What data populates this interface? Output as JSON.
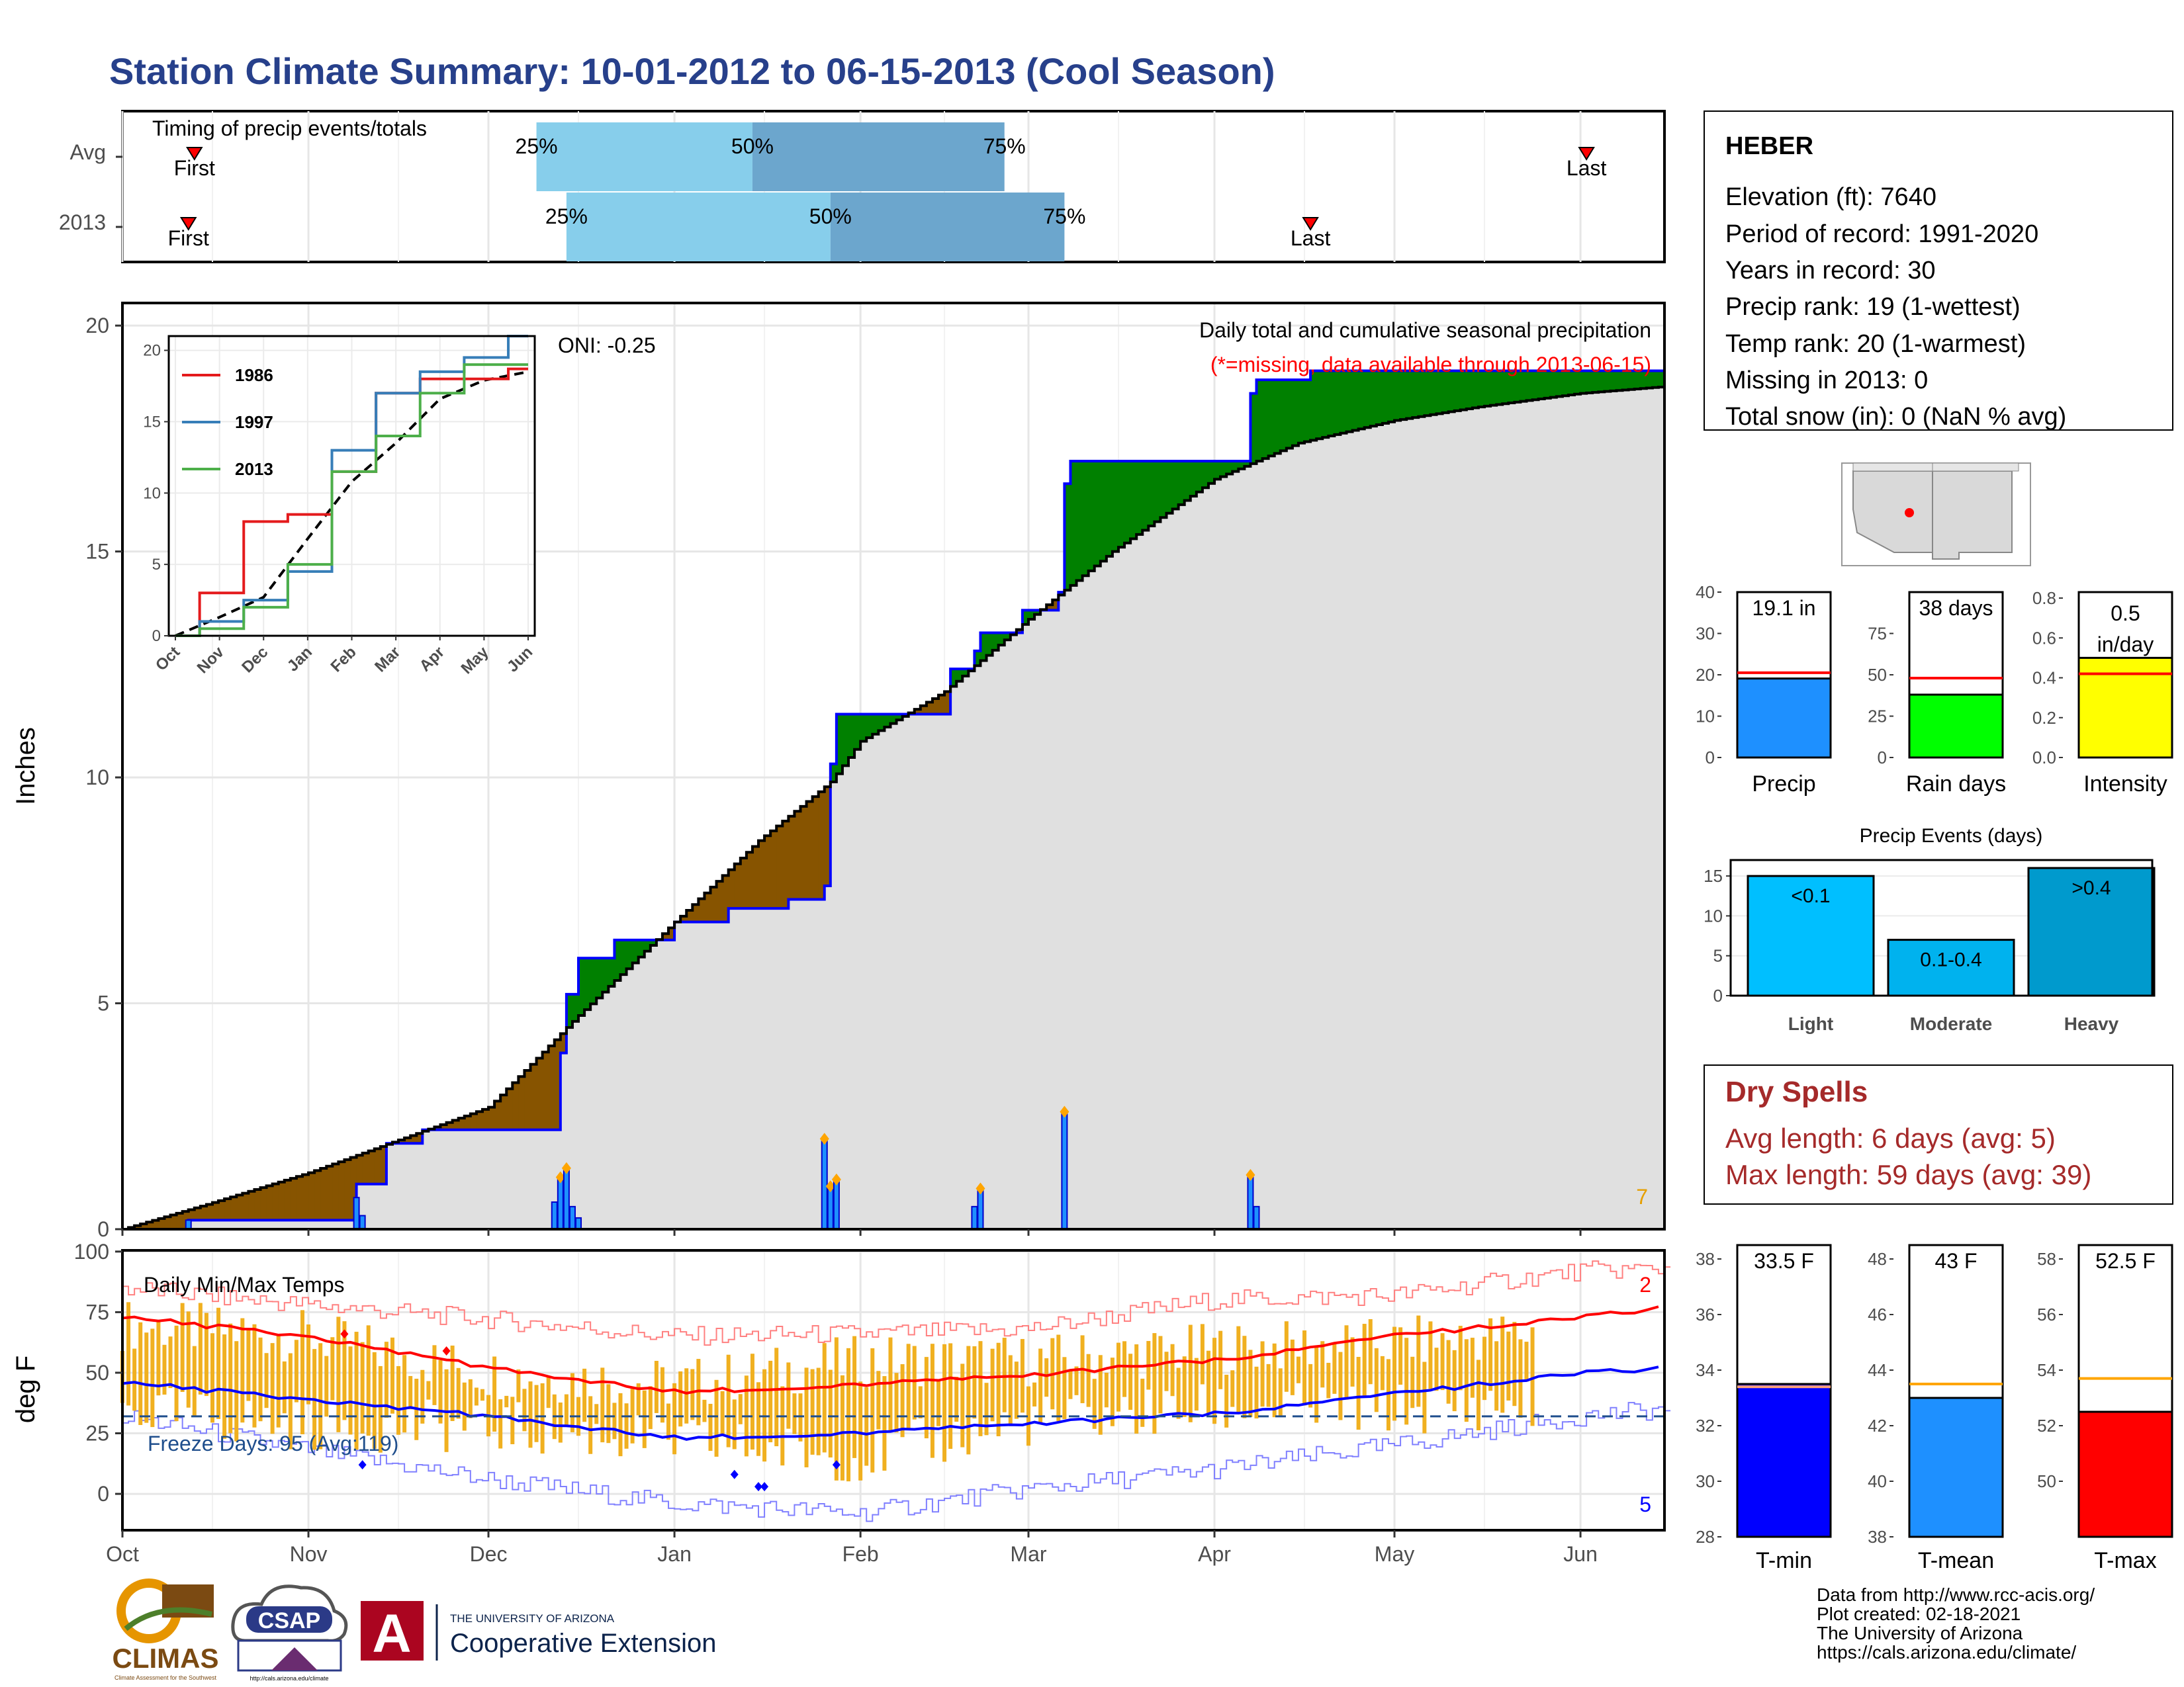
{
  "title": "Station Climate Summary: 10-01-2012 to 06-15-2013 (Cool Season)",
  "timing": {
    "label": "Timing of precip events/totals",
    "rows": [
      {
        "name": "Avg",
        "first_label": "First",
        "first": "2012-10-13",
        "last_label": "Last",
        "last": "2013-06-02",
        "q25": "2012-12-09",
        "q50": "2013-01-14",
        "q75": "2013-02-25",
        "q25_label": "25%",
        "q50_label": "50%",
        "q75_label": "75%"
      },
      {
        "name": "2013",
        "first_label": "First",
        "first": "2012-10-12",
        "last_label": "Last",
        "last": "2013-04-17",
        "q25": "2012-12-14",
        "q50": "2013-01-27",
        "q75": "2013-03-07",
        "q25_label": "25%",
        "q50_label": "50%",
        "q75_label": "75%"
      }
    ]
  },
  "precip_panel": {
    "ylabel": "Inches",
    "yticks": [
      0,
      5,
      10,
      15,
      20
    ],
    "title": "Daily total and cumulative seasonal precipitation",
    "subtitle": "(*=missing, data available through 2013-06-15)",
    "oni": "ONI: -0.25",
    "corner_count": "7"
  },
  "inset": {
    "series": [
      {
        "name": "1986",
        "color": "#e41a1c"
      },
      {
        "name": "1997",
        "color": "#377eb8"
      },
      {
        "name": "2013",
        "color": "#4daf4a"
      }
    ],
    "yticks": [
      0,
      5,
      10,
      15,
      20
    ],
    "xticks": [
      "Oct",
      "Nov",
      "Dec",
      "Jan",
      "Feb",
      "Mar",
      "Apr",
      "May",
      "Jun"
    ]
  },
  "temp_panel": {
    "ylabel": "deg F",
    "yticks": [
      0,
      25,
      50,
      75,
      100
    ],
    "title": "Daily Min/Max Temps",
    "freeze": "Freeze Days: 95 (Avg:119)",
    "count_high": "2",
    "count_low": "5"
  },
  "months": [
    "Oct",
    "Nov",
    "Dec",
    "Jan",
    "Feb",
    "Mar",
    "Apr",
    "May",
    "Jun"
  ],
  "station": {
    "name": "HEBER",
    "lines": [
      "Elevation (ft): 7640",
      "Period of record: 1991-2020",
      "Years in record: 30",
      "Precip rank: 19 (1-wettest)",
      "Temp rank: 20 (1-warmest)",
      "Missing in 2013: 0",
      "Total snow (in): 0 (NaN % avg)"
    ]
  },
  "mini_bars": [
    {
      "label": "Precip",
      "value_label": "19.1 in",
      "value": 19.1,
      "avg": 20.5,
      "ymax": 40,
      "ticks": [
        0,
        10,
        20,
        30,
        40
      ],
      "color": "#1e90ff",
      "avg_color": "#ff0000"
    },
    {
      "label": "Rain days",
      "value_label": "38 days",
      "value": 38,
      "avg": 48,
      "ymax": 100,
      "ticks": [
        0,
        25,
        50,
        75
      ],
      "color": "#00ff00",
      "avg_color": "#ff0000"
    },
    {
      "label": "Intensity",
      "value_label": "0.5 in/day",
      "value": 0.5,
      "avg": 0.42,
      "ymax": 0.83,
      "ticks": [
        0.0,
        0.2,
        0.4,
        0.6,
        0.8
      ],
      "color": "#ffff00",
      "avg_color": "#ff0000"
    }
  ],
  "events": {
    "title": "Precip Events (days)",
    "ticks": [
      0,
      5,
      10,
      15
    ],
    "bars": [
      {
        "label": "Light",
        "value_label": "<0.1",
        "value": 15,
        "color": "#00bfff"
      },
      {
        "label": "Moderate",
        "value_label": "0.1-0.4",
        "value": 7,
        "color": "#00b2ee"
      },
      {
        "label": "Heavy",
        "value_label": ">0.4",
        "value": 16,
        "color": "#009acd"
      }
    ]
  },
  "dry_spells": {
    "title": "Dry Spells",
    "avg": "Avg length: 6 days (avg: 5)",
    "max": "Max length: 59 days (avg: 39)",
    "color": "#a52a2a"
  },
  "temp_bars": [
    {
      "label": "T-min",
      "value_label": "33.5 F",
      "value": 33.5,
      "avg": 33.4,
      "ymin": 28,
      "ymax": 38.5,
      "ticks": [
        28,
        30,
        32,
        34,
        36,
        38
      ],
      "color": "#0000ff"
    },
    {
      "label": "T-mean",
      "value_label": "43 F",
      "value": 43,
      "avg": 43.5,
      "ymin": 38,
      "ymax": 48.5,
      "ticks": [
        38,
        40,
        42,
        44,
        46,
        48
      ],
      "color": "#1e90ff"
    },
    {
      "label": "T-max",
      "value_label": "52.5 F",
      "value": 52.5,
      "avg": 53.7,
      "ymin": 48,
      "ymax": 58.5,
      "ticks": [
        50,
        52,
        54,
        56,
        58
      ],
      "color": "#ff0000"
    }
  ],
  "credits": [
    "Data from http://www.rcc-acis.org/",
    "Plot created: 02-18-2021",
    "The University of Arizona",
    "https://cals.arizona.edu/climate/"
  ],
  "logos": {
    "climas": "CLIMAS",
    "climas_sub": "Climate Assessment for the Southwest",
    "csap": "CSAP",
    "csap_sub": "http://cals.arizona.edu/climate",
    "ua_top": "THE UNIVERSITY OF ARIZONA",
    "ua_bottom": "Cooperative Extension"
  },
  "chart_data": [
    {
      "type": "bar",
      "title": "Timing of precip events/totals",
      "categories": [
        "Avg",
        "2013"
      ],
      "series": [
        {
          "name": "25%",
          "values": [
            "2012-12-09",
            "2012-12-14"
          ]
        },
        {
          "name": "50%",
          "values": [
            "2013-01-14",
            "2013-01-27"
          ]
        },
        {
          "name": "75%",
          "values": [
            "2013-02-25",
            "2013-03-07"
          ]
        }
      ]
    },
    {
      "type": "area",
      "title": "Daily total and cumulative seasonal precipitation",
      "ylabel": "Inches",
      "ylim": [
        0,
        20.5
      ],
      "xlim": [
        "2012-10-01",
        "2013-06-15"
      ],
      "series": [
        {
          "values": [
            [
              "2012-10-01",
              0
            ],
            [
              "2012-10-12",
              0.2
            ],
            [
              "2012-11-08",
              0.2
            ],
            [
              "2012-11-09",
              1.0
            ],
            [
              "2012-11-14",
              1.9
            ],
            [
              "2012-11-20",
              2.2
            ],
            [
              "2012-12-12",
              2.2
            ],
            [
              "2012-12-13",
              3.9
            ],
            [
              "2012-12-14",
              5.2
            ],
            [
              "2012-12-16",
              6.0
            ],
            [
              "2012-12-22",
              6.4
            ],
            [
              "2012-12-30",
              6.4
            ],
            [
              "2013-01-01",
              6.8
            ],
            [
              "2013-01-10",
              7.1
            ],
            [
              "2013-01-20",
              7.3
            ],
            [
              "2013-01-26",
              7.6
            ],
            [
              "2013-01-27",
              10.3
            ],
            [
              "2013-01-28",
              11.4
            ],
            [
              "2013-02-15",
              11.4
            ],
            [
              "2013-02-16",
              12.4
            ],
            [
              "2013-02-20",
              12.8
            ],
            [
              "2013-02-21",
              13.2
            ],
            [
              "2013-02-28",
              13.7
            ],
            [
              "2013-03-06",
              14.1
            ],
            [
              "2013-03-07",
              16.5
            ],
            [
              "2013-03-08",
              17.0
            ],
            [
              "2013-04-06",
              17.0
            ],
            [
              "2013-04-07",
              18.5
            ],
            [
              "2013-04-08",
              18.8
            ],
            [
              "2013-04-17",
              19.0
            ],
            [
              "2013-06-15",
              19.1
            ]
          ]
        },
        {
          "values": [
            [
              "2012-10-01",
              0
            ],
            [
              "2012-10-15",
              0.55
            ],
            [
              "2012-11-01",
              1.25
            ],
            [
              "2012-12-01",
              2.7
            ],
            [
              "2012-12-15",
              4.6
            ],
            [
              "2013-01-01",
              6.8
            ],
            [
              "2013-01-15",
              8.6
            ],
            [
              "2013-01-27",
              9.9
            ],
            [
              "2013-02-01",
              10.8
            ],
            [
              "2013-02-15",
              11.9
            ],
            [
              "2013-03-01",
              13.5
            ],
            [
              "2013-03-15",
              15.0
            ],
            [
              "2013-04-01",
              16.6
            ],
            [
              "2013-04-15",
              17.4
            ],
            [
              "2013-05-01",
              17.9
            ],
            [
              "2013-05-15",
              18.2
            ],
            [
              "2013-06-01",
              18.5
            ],
            [
              "2013-06-15",
              18.65
            ]
          ]
        },
        {
          "values": [
            [
              "2012-10-12",
              0.2
            ],
            [
              "2012-11-09",
              0.7
            ],
            [
              "2012-11-10",
              0.3
            ],
            [
              "2012-12-12",
              0.6
            ],
            [
              "2012-12-13",
              1.15
            ],
            [
              "2012-12-14",
              1.35
            ],
            [
              "2012-12-15",
              0.5
            ],
            [
              "2012-12-16",
              0.25
            ],
            [
              "2013-01-26",
              2.0
            ],
            [
              "2013-01-27",
              0.95
            ],
            [
              "2013-01-28",
              1.1
            ],
            [
              "2013-02-20",
              0.5
            ],
            [
              "2013-02-21",
              0.9
            ],
            [
              "2013-03-07",
              2.6
            ],
            [
              "2013-04-07",
              1.2
            ],
            [
              "2013-04-08",
              0.5
            ]
          ]
        }
      ]
    },
    {
      "type": "line",
      "ylim": [
        0,
        21
      ],
      "x": [
        "Oct",
        "Nov",
        "Dec",
        "Jan",
        "Feb",
        "Mar",
        "Apr",
        "May",
        "Jun"
      ],
      "series": [
        {
          "name": "1986",
          "values": [
            0,
            3,
            8,
            8.5,
            11.5,
            17,
            18,
            18,
            18.7
          ]
        },
        {
          "name": "1997",
          "values": [
            0,
            1,
            2.5,
            4.5,
            13,
            17,
            18.5,
            19.5,
            21
          ]
        },
        {
          "name": "2013",
          "values": [
            0,
            0.5,
            2,
            5,
            11.5,
            14,
            17,
            19,
            19
          ]
        }
      ]
    },
    {
      "type": "line",
      "title": "Daily Min/Max Temps",
      "ylabel": "deg F",
      "ylim": [
        -15,
        100
      ],
      "x": [
        "2012-10-01",
        "2012-11-01",
        "2012-12-01",
        "2013-01-01",
        "2013-02-01",
        "2013-03-01",
        "2013-04-01",
        "2013-05-01",
        "2013-06-01",
        "2013-06-15"
      ],
      "series": [
        {
          "values": [
            73,
            65,
            52,
            42,
            45,
            49,
            55,
            65,
            73,
            77
          ]
        },
        {
          "values": [
            46,
            39,
            32,
            23,
            25,
            29,
            33,
            41,
            50,
            52
          ]
        },
        {
          "values": [
            85,
            78,
            72,
            65,
            66,
            68,
            80,
            82,
            92,
            93
          ]
        },
        {
          "values": [
            32,
            18,
            6,
            -4,
            -8,
            2,
            10,
            20,
            32,
            35
          ]
        },
        {
          "values": [
            70,
            65,
            50,
            45,
            55,
            55,
            60,
            62,
            68,
            68
          ]
        },
        {
          "values": [
            35,
            28,
            28,
            22,
            15,
            30,
            35,
            35,
            38,
            38
          ]
        }
      ]
    },
    {
      "type": "bar",
      "categories": [
        "Precip",
        "Rain days",
        "Intensity"
      ],
      "values": [
        19.1,
        38,
        0.5
      ]
    },
    {
      "type": "bar",
      "title": "Precip Events (days)",
      "categories": [
        "Light",
        "Moderate",
        "Heavy"
      ],
      "values": [
        15,
        7,
        16
      ]
    },
    {
      "type": "bar",
      "categories": [
        "T-min",
        "T-mean",
        "T-max"
      ],
      "values": [
        33.5,
        43,
        52.5
      ]
    }
  ]
}
